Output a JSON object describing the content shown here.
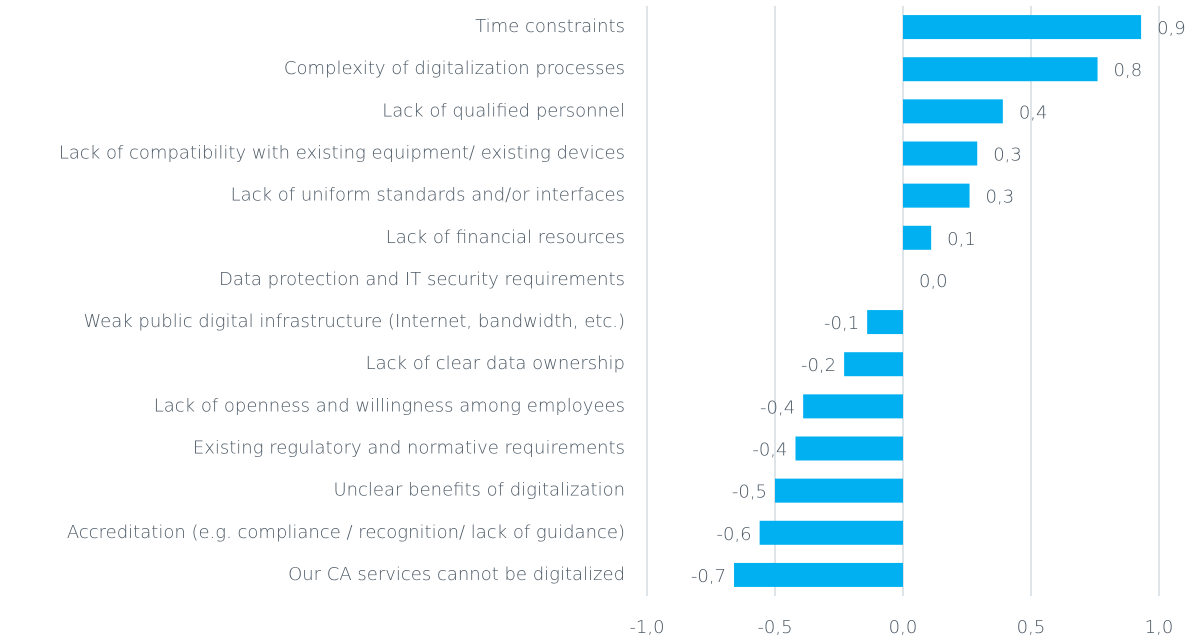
{
  "chart_data": {
    "type": "barh",
    "categories": [
      "Time constraints",
      "Complexity of digitalization processes",
      "Lack of qualified personnel",
      "Lack of compatibility with existing equipment/ existing devices",
      "Lack of uniform standards and/or interfaces",
      "Lack of financial resources",
      "Data protection and IT security requirements",
      "Weak public digital infrastructure (Internet, bandwidth, etc.)",
      "Lack of clear data ownership",
      "Lack of openness and willingness among employees",
      "Existing regulatory and normative requirements",
      "Unclear benefits of digitalization",
      "Accreditation (e.g. compliance / recognition/ lack of guidance)",
      "Our CA services cannot be digitalized"
    ],
    "values": [
      0.93,
      0.76,
      0.39,
      0.29,
      0.26,
      0.11,
      0.0,
      -0.14,
      -0.23,
      -0.39,
      -0.42,
      -0.5,
      -0.56,
      -0.66
    ],
    "value_labels": [
      "0,9",
      "0,8",
      "0,4",
      "0,3",
      "0,3",
      "0,1",
      "0,0",
      "-0,1",
      "-0,2",
      "-0,4",
      "-0,4",
      "-0,5",
      "-0,6",
      "-0,7"
    ],
    "color": "#00b0f0",
    "xlim": [
      -1,
      1
    ],
    "xticks": [
      {
        "value": -1,
        "label": "-1,0"
      },
      {
        "value": -0.5,
        "label": "-0,5"
      },
      {
        "value": 0,
        "label": "0,0"
      },
      {
        "value": 0.5,
        "label": "0,5"
      },
      {
        "value": 1,
        "label": "1,0"
      }
    ],
    "grid": true
  }
}
